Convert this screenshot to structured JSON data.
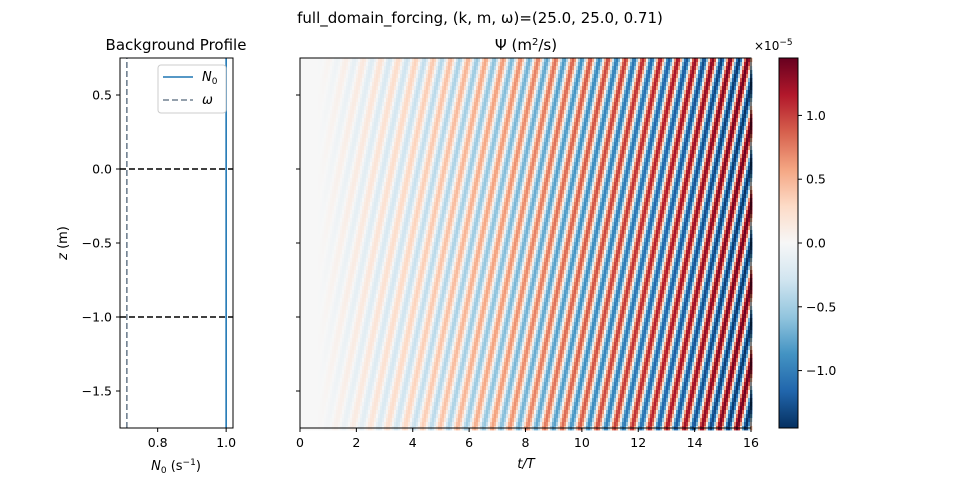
{
  "figure": {
    "suptitle": "full_domain_forcing, (k, m, ω)=(25.0, 25.0, 0.71)"
  },
  "colors": {
    "N0_line": "#1f77b4",
    "omega_line": "#708090",
    "interface_line": "#000000",
    "cmap_low": "#053061",
    "cmap_mid": "#f7f7f7",
    "cmap_high": "#67001f"
  },
  "chart_data": [
    {
      "type": "line",
      "title": "Background Profile",
      "xlabel": "N_0 (s^-1)",
      "ylabel": "z (m)",
      "xlim": [
        0.69,
        1.02
      ],
      "ylim": [
        -1.75,
        0.75
      ],
      "xticks": [
        0.8,
        1.0
      ],
      "xtick_labels": [
        "0.8",
        "1.0"
      ],
      "yticks": [
        0.5,
        0.0,
        -0.5,
        -1.0,
        -1.5
      ],
      "ytick_labels": [
        "0.5",
        "0.0",
        "−0.5",
        "−1.0",
        "−1.5"
      ],
      "legend_position": "top-right",
      "series": [
        {
          "name": "N_0",
          "style": "solid",
          "x": [
            1.0,
            1.0
          ],
          "y": [
            -1.75,
            0.75
          ]
        },
        {
          "name": "ω",
          "style": "dashed",
          "x": [
            0.71,
            0.71
          ],
          "y": [
            -1.75,
            0.75
          ]
        }
      ],
      "hlines": [
        {
          "y": 0.0,
          "style": "dashed"
        },
        {
          "y": -1.0,
          "style": "dashed"
        }
      ]
    },
    {
      "type": "heatmap",
      "title": "Ψ (m^2/s)",
      "xlabel": "t/T",
      "ylabel": "",
      "xlim": [
        0,
        16
      ],
      "ylim": [
        -1.75,
        0.75
      ],
      "xticks": [
        0,
        2,
        4,
        6,
        8,
        10,
        12,
        14,
        16
      ],
      "xtick_labels": [
        "0",
        "2",
        "4",
        "6",
        "8",
        "10",
        "12",
        "14",
        "16"
      ],
      "k": 25.0,
      "m": 25.0,
      "omega": 0.71,
      "stripe_period_t": 0.62,
      "colorbar": {
        "vmin": -1.45e-05,
        "vmax": 1.45e-05,
        "multiplier_label": "×10^-5",
        "ticks": [
          1.0,
          0.5,
          0.0,
          -0.5,
          -1.0
        ],
        "tick_labels": [
          "1.0",
          "0.5",
          "0.0",
          "−0.5",
          "−1.0"
        ]
      }
    }
  ]
}
